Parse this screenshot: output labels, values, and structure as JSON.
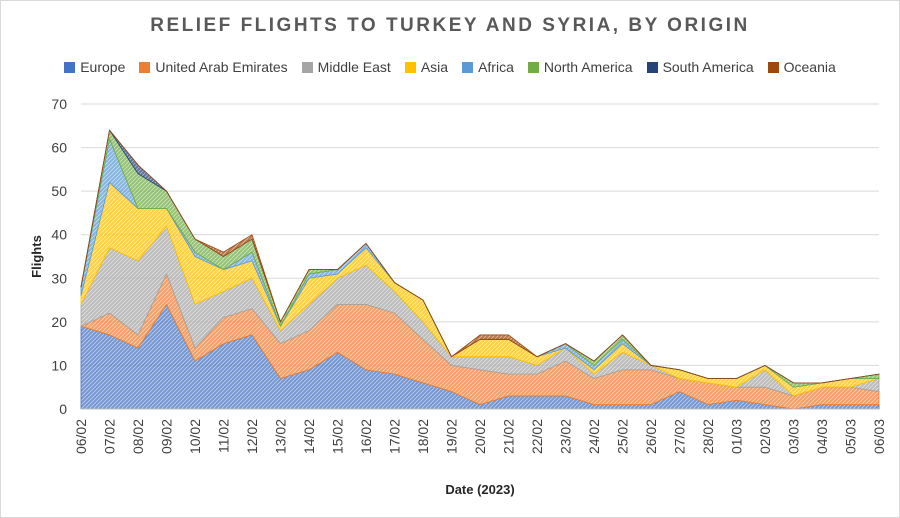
{
  "colors": {
    "Europe": "#4472C4",
    "United Arab Emirates": "#ED7D31",
    "Middle East": "#A5A5A5",
    "Asia": "#FFC000",
    "Africa": "#5B9BD5",
    "North America": "#70AD47",
    "South America": "#264478",
    "Oceania": "#9E480E"
  },
  "chart_data": {
    "type": "area",
    "stacked": true,
    "title": "RELIEF FLIGHTS TO TURKEY AND SYRIA, BY ORIGIN",
    "xlabel": "Date (2023)",
    "ylabel": "Flights",
    "ylim": [
      0,
      70
    ],
    "yticks": [
      0,
      10,
      20,
      30,
      40,
      50,
      60,
      70
    ],
    "grid": true,
    "legend_position": "top",
    "categories": [
      "06/02",
      "07/02",
      "08/02",
      "09/02",
      "10/02",
      "11/02",
      "12/02",
      "13/02",
      "14/02",
      "15/02",
      "16/02",
      "17/02",
      "18/02",
      "19/02",
      "20/02",
      "21/02",
      "22/02",
      "23/02",
      "24/02",
      "25/02",
      "26/02",
      "27/02",
      "28/02",
      "01/03",
      "02/03",
      "03/03",
      "04/03",
      "05/03",
      "06/03"
    ],
    "series": [
      {
        "name": "Europe",
        "values": [
          19,
          17,
          14,
          24,
          11,
          15,
          17,
          7,
          9,
          13,
          9,
          8,
          6,
          4,
          1,
          3,
          3,
          3,
          1,
          1,
          1,
          4,
          1,
          2,
          1,
          0,
          1,
          1,
          1
        ]
      },
      {
        "name": "United Arab Emirates",
        "values": [
          0,
          5,
          3,
          7,
          3,
          6,
          6,
          8,
          9,
          11,
          15,
          14,
          10,
          6,
          8,
          5,
          5,
          8,
          6,
          8,
          8,
          3,
          5,
          3,
          4,
          3,
          4,
          4,
          3
        ]
      },
      {
        "name": "Middle East",
        "values": [
          5,
          15,
          17,
          11,
          10,
          6,
          7,
          3,
          6,
          6,
          9,
          5,
          4,
          2,
          3,
          4,
          2,
          3,
          1,
          4,
          1,
          0,
          0,
          0,
          4,
          0,
          0,
          0,
          3
        ]
      },
      {
        "name": "Asia",
        "values": [
          2,
          15,
          12,
          4,
          11,
          5,
          4,
          1,
          6,
          1,
          4,
          2,
          5,
          0,
          4,
          4,
          2,
          0,
          1,
          2,
          0,
          2,
          1,
          2,
          1,
          2,
          1,
          2,
          0
        ]
      },
      {
        "name": "Africa",
        "values": [
          2,
          10,
          0,
          0,
          1,
          0,
          2,
          0,
          1,
          1,
          1,
          0,
          0,
          0,
          0,
          0,
          0,
          1,
          1,
          1,
          0,
          0,
          0,
          0,
          0,
          0,
          0,
          0,
          0
        ]
      },
      {
        "name": "North America",
        "values": [
          0,
          2,
          8,
          4,
          3,
          3,
          3,
          1,
          1,
          0,
          0,
          0,
          0,
          0,
          0,
          0,
          0,
          0,
          1,
          1,
          0,
          0,
          0,
          0,
          0,
          1,
          0,
          0,
          1
        ]
      },
      {
        "name": "South America",
        "values": [
          0,
          0,
          2,
          0,
          0,
          0,
          0,
          0,
          0,
          0,
          0,
          0,
          0,
          0,
          0,
          0,
          0,
          0,
          0,
          0,
          0,
          0,
          0,
          0,
          0,
          0,
          0,
          0,
          0
        ]
      },
      {
        "name": "Oceania",
        "values": [
          0,
          0,
          0,
          0,
          0,
          1,
          1,
          0,
          0,
          0,
          0,
          0,
          0,
          0,
          1,
          1,
          0,
          0,
          0,
          0,
          0,
          0,
          0,
          0,
          0,
          0,
          0,
          0,
          0
        ]
      }
    ]
  }
}
